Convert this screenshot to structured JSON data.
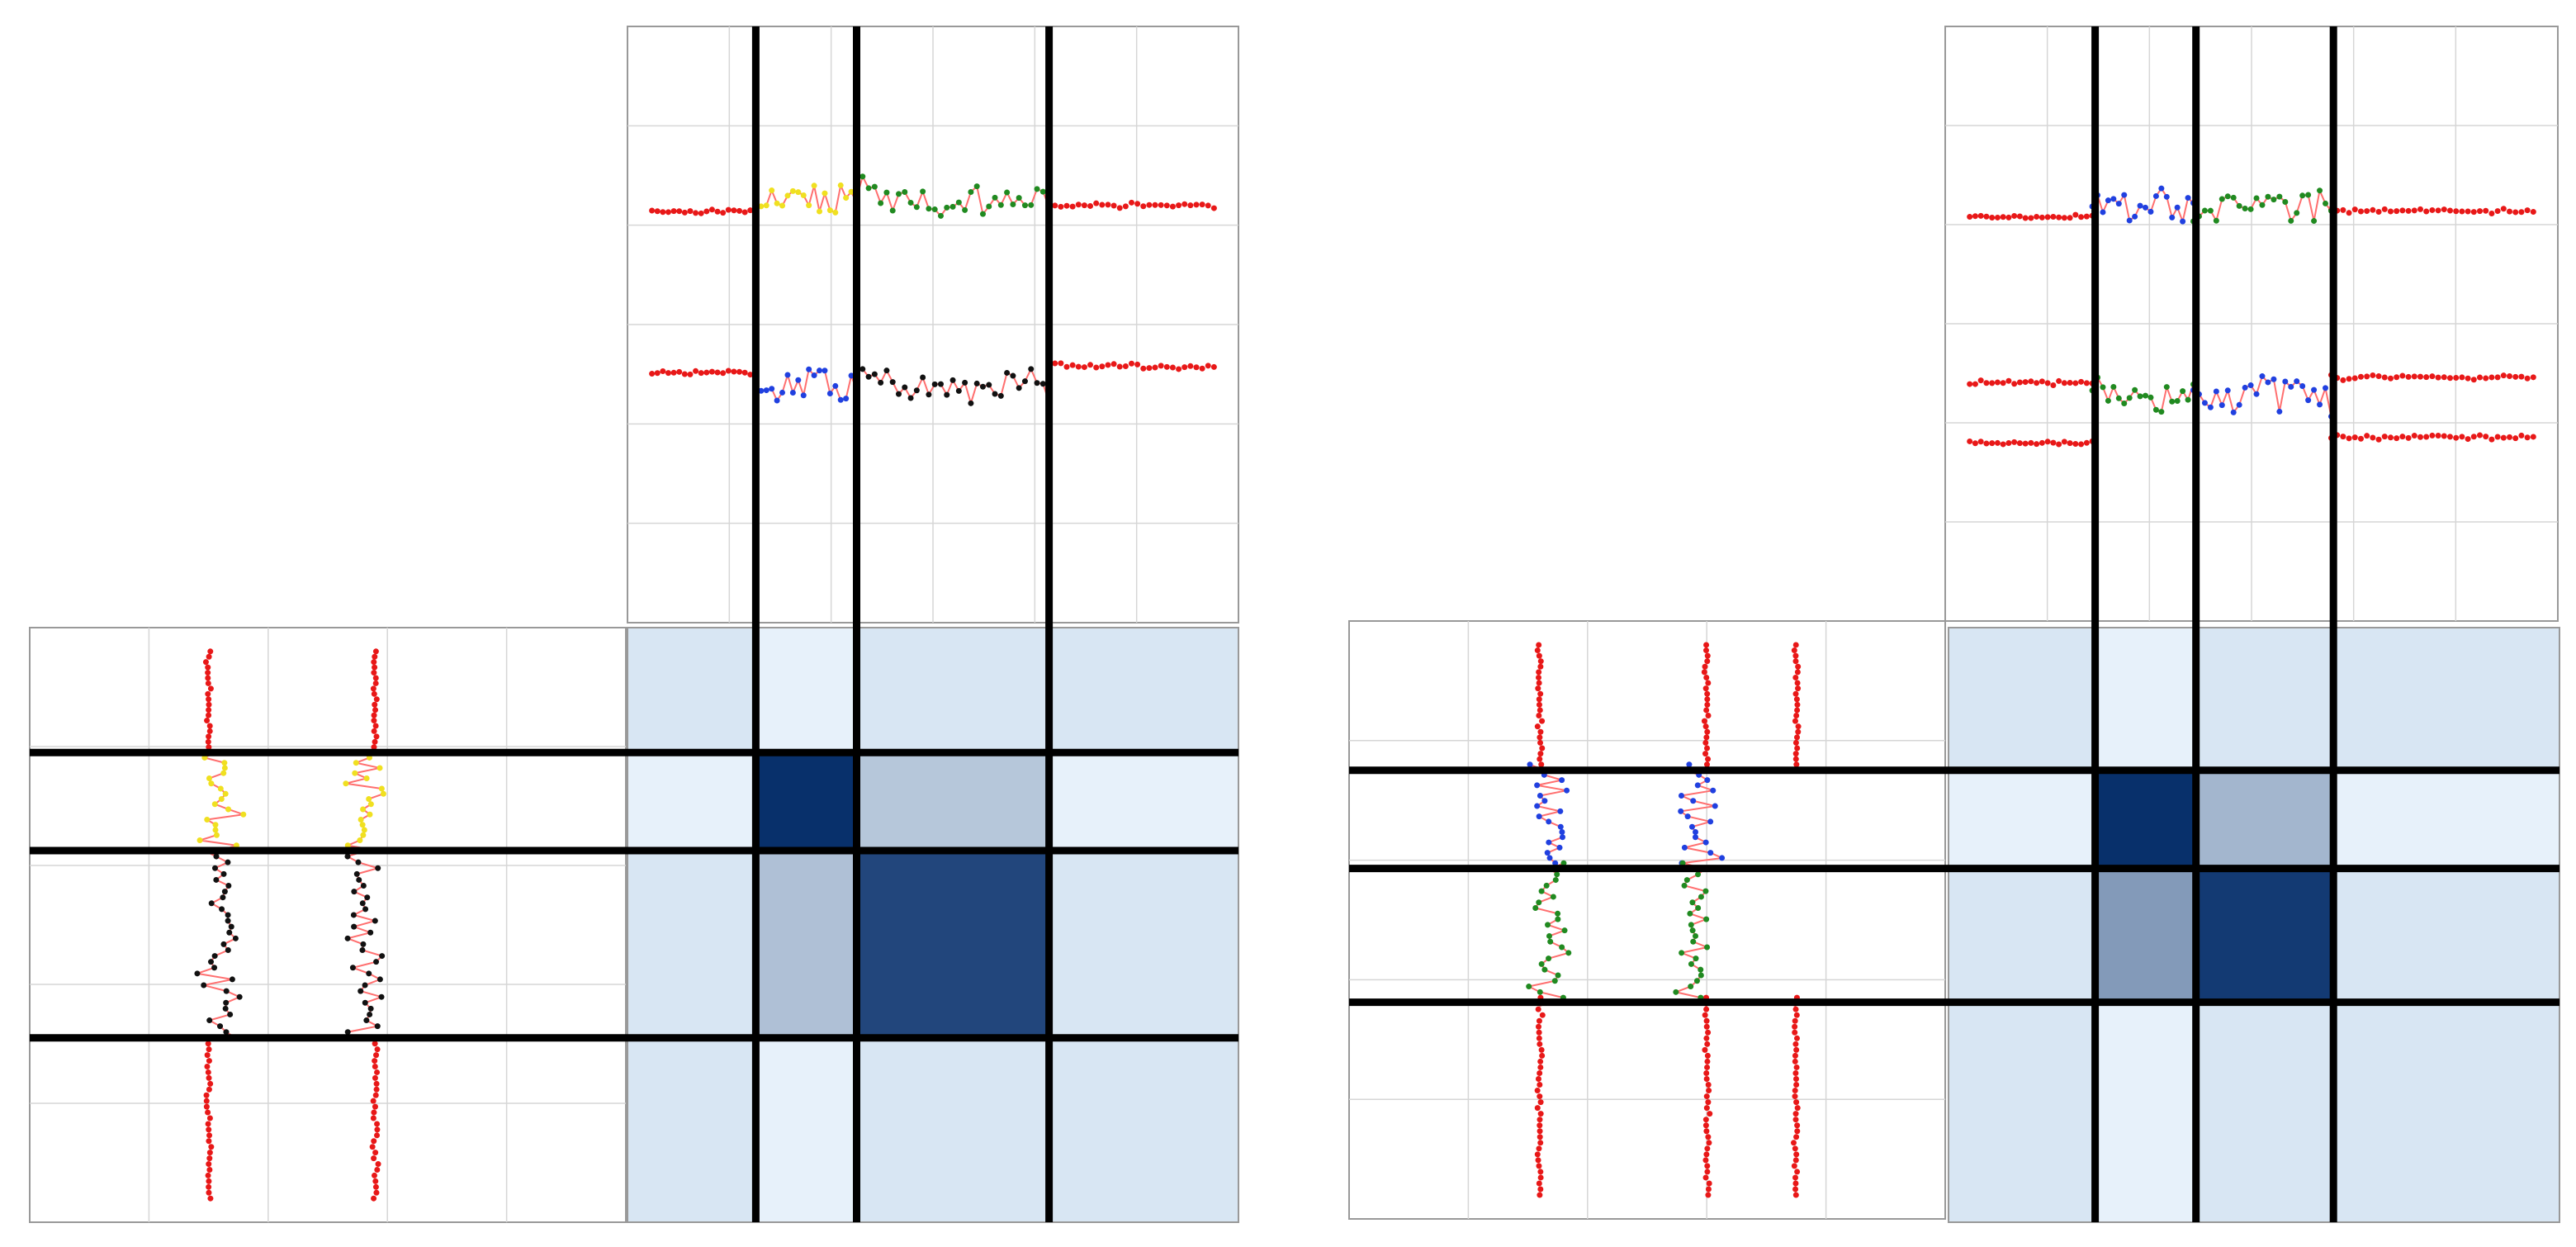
{
  "figure": {
    "colors": {
      "regime": "#e81818",
      "regime_a": "#f0e020",
      "regime_b": "#2040e0",
      "regime_c": "#208a20",
      "regime_d": "#111111",
      "line_red": "#ff6f6f",
      "grid": "#d6d6d6",
      "frame": "#999999",
      "divider": "#000000",
      "heat_low": "#eaf2fa",
      "heat_high": "#08306b"
    }
  },
  "chart_data": [
    {
      "type": "heatmap",
      "id": "left",
      "boundaries": [
        0.21,
        0.375,
        0.69
      ],
      "blocks": [
        {
          "r": [
            0.21,
            0.375
          ],
          "c": [
            0.21,
            0.375
          ],
          "level": 1.0
        },
        {
          "r": [
            0.375,
            0.69
          ],
          "c": [
            0.375,
            0.69
          ],
          "level": 0.88
        },
        {
          "r": [
            0.375,
            0.69
          ],
          "c": [
            0.21,
            0.375
          ],
          "level": 0.25
        },
        {
          "r": [
            0.21,
            0.375
          ],
          "c": [
            0.375,
            0.69
          ],
          "level": 0.22
        }
      ],
      "top_plot": {
        "baselines": [
          0.31,
          0.58
        ],
        "trace_bands": [
          [
            0.21,
            0.375
          ],
          [
            0.375,
            0.69
          ]
        ]
      },
      "side_plot": {
        "baselines": [
          0.3,
          0.58
        ],
        "trace_bands": [
          [
            0.21,
            0.375
          ],
          [
            0.375,
            0.69
          ]
        ]
      }
    },
    {
      "type": "heatmap",
      "id": "right",
      "boundaries": [
        0.24,
        0.405,
        0.63
      ],
      "blocks": [
        {
          "r": [
            0.24,
            0.405
          ],
          "c": [
            0.24,
            0.405
          ],
          "level": 1.0
        },
        {
          "r": [
            0.405,
            0.63
          ],
          "c": [
            0.405,
            0.63
          ],
          "level": 0.95
        },
        {
          "r": [
            0.405,
            0.63
          ],
          "c": [
            0.24,
            0.405
          ],
          "level": 0.45
        },
        {
          "r": [
            0.24,
            0.405
          ],
          "c": [
            0.405,
            0.63
          ],
          "level": 0.3
        }
      ],
      "top_plot": {
        "baselines": [
          0.32,
          0.6,
          0.7
        ],
        "trace_bands": [
          [
            0.24,
            0.405
          ],
          [
            0.405,
            0.63
          ]
        ]
      },
      "side_plot": {
        "baselines": [
          0.32,
          0.6,
          0.75
        ],
        "trace_bands": [
          [
            0.24,
            0.405
          ],
          [
            0.405,
            0.63
          ]
        ]
      }
    }
  ]
}
